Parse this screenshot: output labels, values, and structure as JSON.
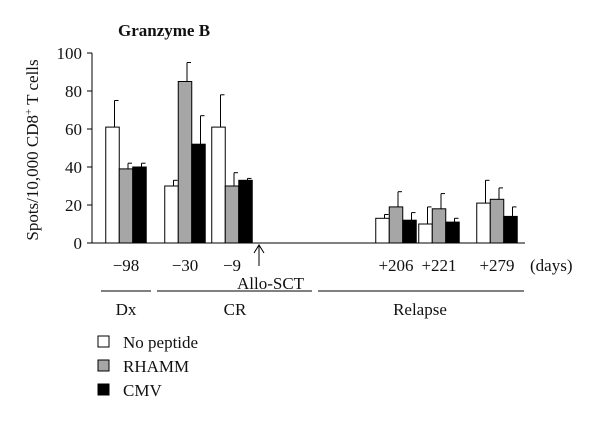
{
  "chart_data": {
    "type": "bar",
    "title": "Granzyme B",
    "ylabel": "Spots/10,000 CD8+ T cells",
    "ylim": [
      0,
      100
    ],
    "yticks": [
      0,
      20,
      40,
      60,
      80,
      100
    ],
    "x_unit_label": "(days)",
    "categories": [
      "−98",
      "−30",
      "−9",
      "+206",
      "+221",
      "+279"
    ],
    "series": [
      {
        "name": "No peptide",
        "color": "#ffffff",
        "values": [
          61,
          30,
          61,
          13,
          10,
          21
        ],
        "errors": [
          14,
          3,
          17,
          2,
          9,
          12
        ]
      },
      {
        "name": "RHAMM",
        "color": "#a6a6a6",
        "values": [
          39,
          85,
          30,
          19,
          18,
          23
        ],
        "errors": [
          3,
          10,
          7,
          8,
          8,
          6
        ]
      },
      {
        "name": "CMV",
        "color": "#000000",
        "values": [
          40,
          52,
          33,
          12,
          11,
          14
        ],
        "errors": [
          2,
          15,
          1,
          4,
          2,
          5
        ]
      }
    ],
    "annotations": {
      "arrow_label": "Allo-SCT",
      "groups": [
        {
          "label": "Dx",
          "categories": [
            "−98"
          ]
        },
        {
          "label": "CR",
          "categories": [
            "−30",
            "−9"
          ]
        },
        {
          "label": "Relapse",
          "categories": [
            "+206",
            "+221",
            "+279"
          ]
        }
      ]
    },
    "legend_position": "bottom-left"
  }
}
